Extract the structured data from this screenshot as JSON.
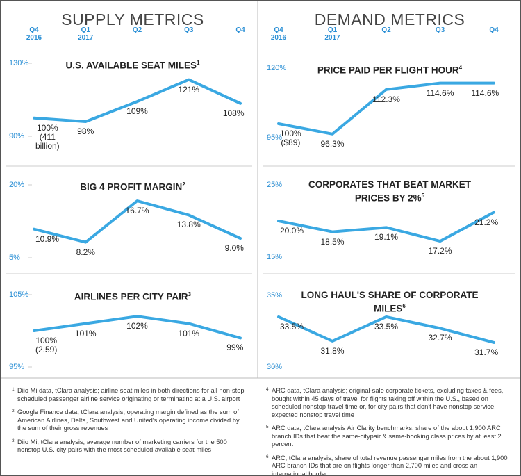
{
  "headers": [
    "SUPPLY METRICS",
    "DEMAND METRICS"
  ],
  "chart_data": [
    {
      "type": "line",
      "title": "U.S. AVAILABLE SEAT MILES",
      "note": "1",
      "color": "#3aa8e2",
      "categories": [
        "Q4\n2016",
        "Q1\n2017",
        "Q2",
        "Q3",
        "Q4"
      ],
      "values": [
        100,
        98,
        109,
        121,
        108
      ],
      "value_labels": [
        "100%\n(411\nbillion)",
        "98%",
        "109%",
        "121%",
        "108%"
      ],
      "ylim": [
        90,
        130
      ],
      "yticks": [
        {
          "value": 130,
          "label": "130%"
        },
        {
          "value": 90,
          "label": "90%"
        }
      ]
    },
    {
      "type": "line",
      "title": "BIG 4 PROFIT MARGIN",
      "note": "2",
      "color": "#3aa8e2",
      "values": [
        10.9,
        8.2,
        16.7,
        13.8,
        9.0
      ],
      "value_labels": [
        "10.9%",
        "8.2%",
        "16.7%",
        "13.8%",
        "9.0%"
      ],
      "ylim": [
        5,
        20
      ],
      "yticks": [
        {
          "value": 20,
          "label": "20%"
        },
        {
          "value": 5,
          "label": "5%"
        }
      ]
    },
    {
      "type": "line",
      "title": "AIRLINES PER CITY PAIR",
      "note": "3",
      "color": "#3aa8e2",
      "values": [
        100,
        101,
        102,
        101,
        99
      ],
      "value_labels": [
        "100%\n(2.59)",
        "101%",
        "102%",
        "101%",
        "99%"
      ],
      "ylim": [
        95,
        105
      ],
      "yticks": [
        {
          "value": 105,
          "label": "105%"
        },
        {
          "value": 95,
          "label": "95%"
        }
      ]
    },
    {
      "type": "line",
      "title": "PRICE PAID PER FLIGHT HOUR",
      "note": "4",
      "color": "#3aa8e2",
      "categories": [
        "Q4\n2016",
        "Q1\n2017",
        "Q2",
        "Q3",
        "Q4"
      ],
      "values": [
        100,
        96.3,
        112.3,
        114.6,
        114.6
      ],
      "value_labels": [
        "100%\n($89)",
        "96.3%",
        "112.3%",
        "114.6%",
        "114.6%"
      ],
      "ylim": [
        95,
        120
      ],
      "yticks": [
        {
          "value": 120,
          "label": "120%"
        },
        {
          "value": 95,
          "label": "95%"
        }
      ]
    },
    {
      "type": "line",
      "title": "CORPORATES THAT BEAT MARKET PRICES BY 2%",
      "note": "5",
      "color": "#3aa8e2",
      "values": [
        20.0,
        18.5,
        19.1,
        17.2,
        21.2
      ],
      "value_labels": [
        "20.0%",
        "18.5%",
        "19.1%",
        "17.2%",
        "21.2%"
      ],
      "ylim": [
        15,
        25
      ],
      "yticks": [
        {
          "value": 25,
          "label": "25%"
        },
        {
          "value": 15,
          "label": "15%"
        }
      ]
    },
    {
      "type": "line",
      "title": "LONG HAUL'S SHARE OF CORPORATE MILES",
      "note": "6",
      "color": "#3aa8e2",
      "values": [
        33.5,
        31.8,
        33.5,
        32.7,
        31.7
      ],
      "value_labels": [
        "33.5%",
        "31.8%",
        "33.5%",
        "32.7%",
        "31.7%"
      ],
      "ylim": [
        30,
        35
      ],
      "yticks": [
        {
          "value": 35,
          "label": "35%"
        },
        {
          "value": 30,
          "label": "30%"
        }
      ]
    }
  ],
  "footnotes": [
    {
      "marker": "1",
      "text": "Diio Mi data, tClara analysis; airline seat miles in both directions for all non-stop scheduled passenger airline service originating or terminating at a U.S. airport"
    },
    {
      "marker": "2",
      "text": "Google Finance data, tClara analysis; operating margin defined as the sum of American Airlines, Delta, Southwest and United's operating income divided by the sum of their gross revenues"
    },
    {
      "marker": "3",
      "text": "Diio Mi, tClara analysis; average number of marketing carriers for the 500 nonstop U.S. city pairs with the most scheduled available seat miles"
    },
    {
      "marker": "4",
      "text": "ARC data, tClara analysis; original-sale corporate tickets, excluding taxes & fees, bought within 45 days of travel for flights taking off within the U.S., based on scheduled nonstop travel time or, for city pairs that don't have nonstop service, expected nonstop travel time"
    },
    {
      "marker": "5",
      "text": "ARC data, tClara analysis Air Clarity benchmarks; share of the about 1,900 ARC branch IDs that beat the same-citypair & same-booking class prices by at least 2 percent"
    },
    {
      "marker": "6",
      "text": "ARC, tClara analysis; share of total revenue passenger miles from the about 1,900 ARC branch IDs that are on flights longer than 2,700 miles and cross an international border"
    }
  ]
}
